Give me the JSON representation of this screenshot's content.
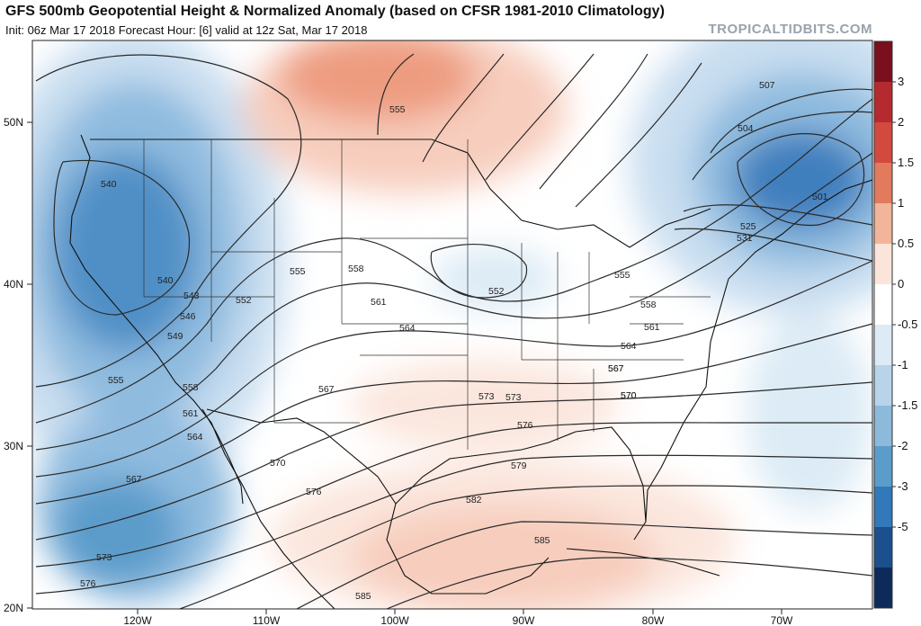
{
  "header": {
    "title": "GFS 500mb Geopotential Height & Normalized Anomaly (based on CFSR 1981-2010 Climatology)",
    "subtitle": "Init: 06z Mar 17 2018   Forecast Hour: [6]   valid at 12z Sat, Mar 17 2018",
    "brand": "TROPICALTIDBITS.COM"
  },
  "axes": {
    "lat_labels": [
      "50N",
      "40N",
      "30N",
      "20N"
    ],
    "lon_labels": [
      "120W",
      "110W",
      "100W",
      "90W",
      "80W",
      "70W"
    ]
  },
  "contours": {
    "height_labels": [
      "555",
      "540",
      "540",
      "543",
      "546",
      "549",
      "552",
      "555",
      "558",
      "561",
      "564",
      "567",
      "570",
      "573",
      "576",
      "555",
      "558",
      "561",
      "564",
      "567",
      "570",
      "573",
      "576",
      "579",
      "582",
      "585",
      "585",
      "567",
      "573",
      "576",
      "552",
      "555",
      "558",
      "561",
      "564",
      "567",
      "570",
      "507",
      "504",
      "501",
      "525",
      "531"
    ]
  },
  "colorbar": {
    "labels": [
      "3",
      "2",
      "1.5",
      "1",
      "0.5",
      "0",
      "-0.5",
      "-1",
      "-1.5",
      "-2",
      "-3",
      "-5"
    ],
    "colors": [
      "#7a0f1e",
      "#b52a2e",
      "#d24a3f",
      "#e27a5e",
      "#f2b49b",
      "#fbe4da",
      "#ffffff",
      "#dcebf5",
      "#b7d4ea",
      "#8dbadb",
      "#5b9ccb",
      "#3179b8",
      "#1b4f8d",
      "#0c2a5a"
    ]
  },
  "map_colors": {
    "strong_blue": "#4f8fc6",
    "mid_blue": "#8fbbdf",
    "light_blue": "#c9def0",
    "pale_blue": "#e6f0f8",
    "light_red": "#f7cdbd",
    "mid_red": "#ee9c80",
    "pale_red": "#fbe6dd"
  },
  "icons": {
    "contour_lines": "height-contours",
    "borders": "political-borders"
  }
}
